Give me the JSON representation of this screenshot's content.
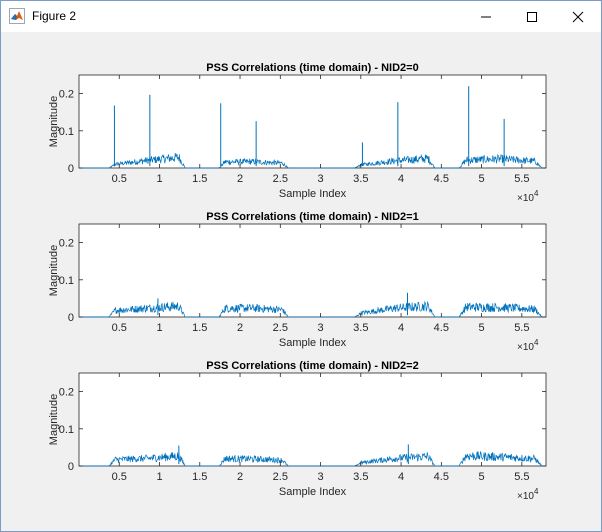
{
  "window": {
    "title": "Figure 2"
  },
  "x_multiplier": "×10",
  "x_multiplier_exp": "4",
  "chart_data": [
    {
      "type": "line",
      "title": "PSS Correlations (time domain) - NID2=0",
      "xlabel": "Sample Index",
      "ylabel": "Magnitude",
      "xlim": [
        0,
        58000
      ],
      "ylim": [
        0,
        0.25
      ],
      "x_ticks": [
        5000,
        10000,
        15000,
        20000,
        25000,
        30000,
        35000,
        40000,
        45000,
        50000,
        55000
      ],
      "x_tick_labels": [
        "0.5",
        "1",
        "1.5",
        "2",
        "2.5",
        "3",
        "3.5",
        "4",
        "4.5",
        "5",
        "5.5"
      ],
      "y_ticks": [
        0,
        0.1,
        0.2
      ],
      "y_tick_labels": [
        "0",
        "0.1",
        "0.2"
      ],
      "line_color": "#0072bd",
      "bursts": [
        {
          "x": [
            3700,
            13200
          ],
          "envelope": [
            0.012,
            0.03,
            0.045
          ]
        },
        {
          "x": [
            17400,
            26000
          ],
          "envelope": [
            0.024,
            0.025,
            0.018
          ]
        },
        {
          "x": [
            34200,
            44200
          ],
          "envelope": [
            0.01,
            0.028,
            0.04
          ]
        },
        {
          "x": [
            47200,
            57500
          ],
          "envelope": [
            0.03,
            0.036,
            0.025
          ]
        }
      ],
      "peaks": [
        {
          "x": 4400,
          "y": 0.168
        },
        {
          "x": 8800,
          "y": 0.197
        },
        {
          "x": 17600,
          "y": 0.174
        },
        {
          "x": 22000,
          "y": 0.126
        },
        {
          "x": 35200,
          "y": 0.069
        },
        {
          "x": 39600,
          "y": 0.177
        },
        {
          "x": 48400,
          "y": 0.22
        },
        {
          "x": 52800,
          "y": 0.132
        }
      ]
    },
    {
      "type": "line",
      "title": "PSS Correlations (time domain) - NID2=1",
      "xlabel": "Sample Index",
      "ylabel": "Magnitude",
      "xlim": [
        0,
        58000
      ],
      "ylim": [
        0,
        0.25
      ],
      "x_ticks": [
        5000,
        10000,
        15000,
        20000,
        25000,
        30000,
        35000,
        40000,
        45000,
        50000,
        55000
      ],
      "x_tick_labels": [
        "0.5",
        "1",
        "1.5",
        "2",
        "2.5",
        "3",
        "3.5",
        "4",
        "4.5",
        "5",
        "5.5"
      ],
      "y_ticks": [
        0,
        0.1,
        0.2
      ],
      "y_tick_labels": [
        "0",
        "0.1",
        "0.2"
      ],
      "line_color": "#0072bd",
      "bursts": [
        {
          "x": [
            3700,
            13200
          ],
          "envelope": [
            0.025,
            0.035,
            0.045
          ]
        },
        {
          "x": [
            17400,
            26000
          ],
          "envelope": [
            0.035,
            0.035,
            0.028
          ]
        },
        {
          "x": [
            34200,
            44200
          ],
          "envelope": [
            0.012,
            0.035,
            0.045
          ]
        },
        {
          "x": [
            47200,
            57500
          ],
          "envelope": [
            0.04,
            0.038,
            0.03
          ]
        }
      ],
      "peaks": [
        {
          "x": 40800,
          "y": 0.065
        },
        {
          "x": 9800,
          "y": 0.05
        }
      ]
    },
    {
      "type": "line",
      "title": "PSS Correlations (time domain) - NID2=2",
      "xlabel": "Sample Index",
      "ylabel": "Magnitude",
      "xlim": [
        0,
        58000
      ],
      "ylim": [
        0,
        0.25
      ],
      "x_ticks": [
        5000,
        10000,
        15000,
        20000,
        25000,
        30000,
        35000,
        40000,
        45000,
        50000,
        55000
      ],
      "x_tick_labels": [
        "0.5",
        "1",
        "1.5",
        "2",
        "2.5",
        "3",
        "3.5",
        "4",
        "4.5",
        "5",
        "5.5"
      ],
      "y_ticks": [
        0,
        0.1,
        0.2
      ],
      "y_tick_labels": [
        "0",
        "0.1",
        "0.2"
      ],
      "line_color": "#0072bd",
      "bursts": [
        {
          "x": [
            3700,
            13200
          ],
          "envelope": [
            0.025,
            0.03,
            0.042
          ]
        },
        {
          "x": [
            17400,
            26000
          ],
          "envelope": [
            0.03,
            0.028,
            0.022
          ]
        },
        {
          "x": [
            34200,
            44200
          ],
          "envelope": [
            0.01,
            0.03,
            0.04
          ]
        },
        {
          "x": [
            47200,
            57500
          ],
          "envelope": [
            0.042,
            0.036,
            0.028
          ]
        }
      ],
      "peaks": [
        {
          "x": 40900,
          "y": 0.058
        },
        {
          "x": 12400,
          "y": 0.055
        }
      ]
    }
  ]
}
